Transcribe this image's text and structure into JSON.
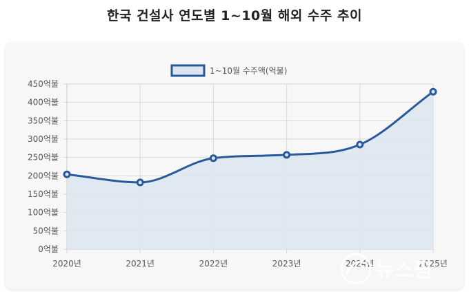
{
  "page": {
    "title": "한국 건설사 연도별 1~10월 해외 수주 추이"
  },
  "watermark": {
    "text": "뉴스핌"
  },
  "colors": {
    "line": "#285a9a",
    "fill": "#dde5f0",
    "grid": "#d8d8d8",
    "card": "#f7f7f7"
  },
  "chart_data": {
    "type": "area",
    "x": [
      "2020년",
      "2021년",
      "2022년",
      "2023년",
      "2024년",
      "2025년"
    ],
    "series": [
      {
        "name": "1~10월 수주액(억불)",
        "values": [
          204,
          182,
          248,
          257,
          285,
          429
        ]
      }
    ],
    "y_ticks": [
      "0억불",
      "50억불",
      "100억불",
      "150억불",
      "200억불",
      "250억불",
      "300억불",
      "350억불",
      "400억불",
      "450억불"
    ],
    "ylim": [
      0,
      450
    ],
    "grid": true,
    "legend": "top-center",
    "smooth": true
  }
}
